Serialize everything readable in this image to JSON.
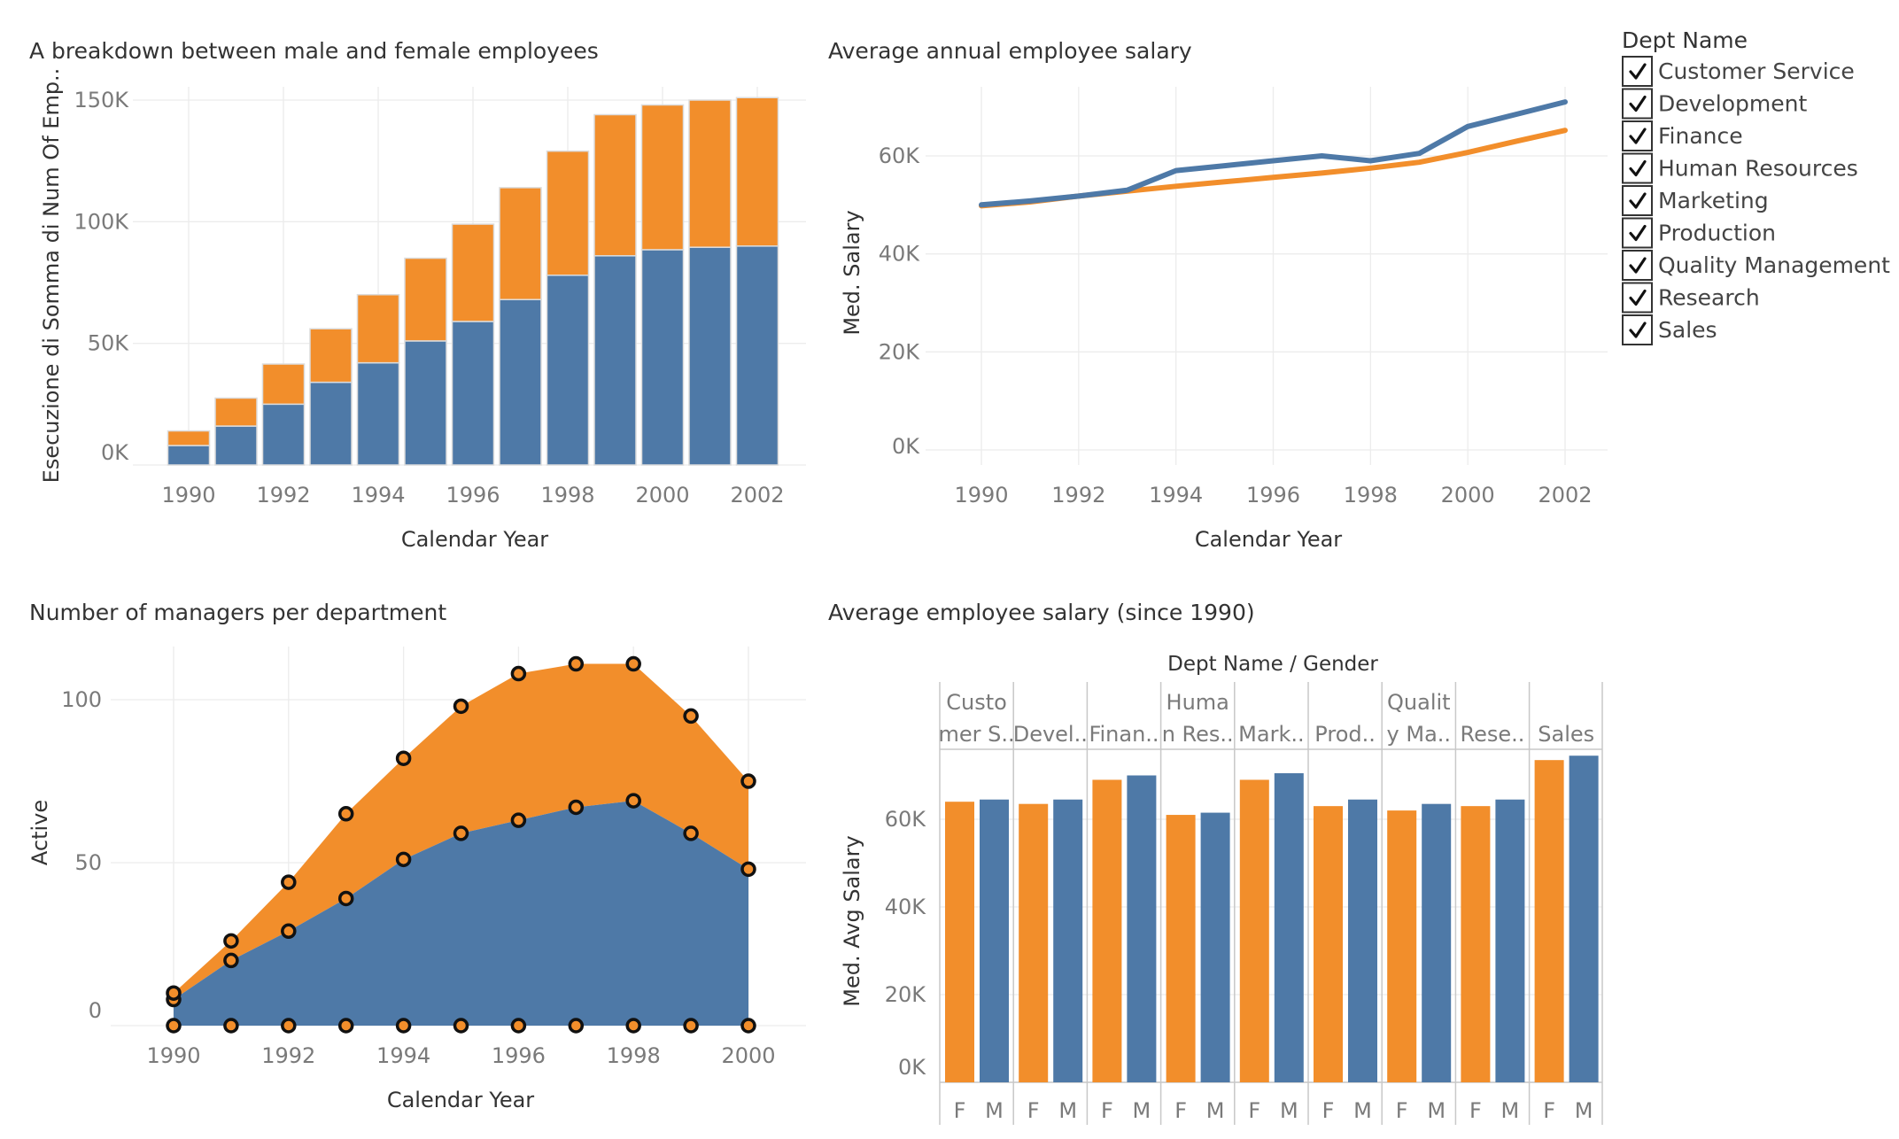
{
  "colors": {
    "female": "#f28e2b",
    "male": "#4e79a7",
    "marker_stroke": "#111111"
  },
  "legend": {
    "title": "Dept Name",
    "items": [
      "Customer Service",
      "Development",
      "Finance",
      "Human Resources",
      "Marketing",
      "Production",
      "Quality Management",
      "Research",
      "Sales"
    ],
    "checked": [
      true,
      true,
      true,
      true,
      true,
      true,
      true,
      true,
      true
    ]
  },
  "chart_data": [
    {
      "id": "gender_breakdown",
      "type": "bar",
      "stacked": true,
      "title": "A breakdown between male and female employees",
      "xlabel": "Calendar Year",
      "ylabel": "Esecuzione di Somma di Num Of Emp..",
      "ylim": [
        0,
        150000
      ],
      "y_ticks": [
        "0K",
        "50K",
        "100K",
        "150K"
      ],
      "x_ticks": [
        "1990",
        "1992",
        "1994",
        "1996",
        "1998",
        "2000",
        "2002"
      ],
      "categories": [
        "1990",
        "1991",
        "1992",
        "1993",
        "1994",
        "1995",
        "1996",
        "1997",
        "1998",
        "1999",
        "2000",
        "2001",
        "2002"
      ],
      "series": [
        {
          "values": [
            8000,
            16000,
            25000,
            34000,
            42000,
            51000,
            59000,
            68000,
            78000,
            86000,
            88500,
            89500,
            90000
          ]
        },
        {
          "values": [
            6000,
            11500,
            16500,
            22000,
            28000,
            34000,
            40000,
            46000,
            51000,
            58000,
            59500,
            60500,
            61000
          ]
        }
      ]
    },
    {
      "id": "avg_salary_line",
      "type": "line",
      "title": "Average annual employee salary",
      "xlabel": "Calendar Year",
      "ylabel": "Med. Salary",
      "ylim": [
        0,
        75000
      ],
      "y_ticks": [
        "0K",
        "20K",
        "40K",
        "60K"
      ],
      "x_ticks": [
        "1990",
        "1992",
        "1994",
        "1996",
        "1998",
        "2000",
        "2002"
      ],
      "x": [
        1990,
        1991,
        1992,
        1993,
        1994,
        1995,
        1996,
        1997,
        1998,
        1999,
        2000,
        2001,
        2002
      ],
      "series": [
        {
          "values": [
            50000,
            50800,
            51800,
            53000,
            57000,
            58000,
            59000,
            60000,
            59000,
            60500,
            66000,
            68500,
            71000
          ]
        },
        {
          "values": [
            49800,
            50600,
            51800,
            52800,
            53800,
            54700,
            55600,
            56500,
            57500,
            58700,
            60700,
            63000,
            65200
          ]
        }
      ]
    },
    {
      "id": "managers_area",
      "type": "area",
      "stacked": true,
      "title": "Number of managers per department",
      "xlabel": "Calendar Year",
      "ylabel": "Active",
      "ylim": [
        0,
        115
      ],
      "y_ticks": [
        "0",
        "50",
        "100"
      ],
      "x_ticks": [
        "1990",
        "1992",
        "1994",
        "1996",
        "1998",
        "2000"
      ],
      "x": [
        1990,
        1991,
        1992,
        1993,
        1994,
        1995,
        1996,
        1997,
        1998,
        1999,
        2000
      ],
      "series": [
        {
          "values": [
            8,
            20,
            29,
            39,
            51,
            59,
            63,
            67,
            69,
            59,
            48
          ]
        },
        {
          "values": [
            2,
            6,
            15,
            26,
            31,
            39,
            45,
            44,
            42,
            36,
            27
          ]
        }
      ]
    },
    {
      "id": "dept_salary_bar",
      "type": "bar",
      "title": "Average employee salary (since 1990)",
      "header": "Dept Name  /  Gender",
      "ylabel": "Med. Avg Salary",
      "ylim": [
        0,
        80000
      ],
      "y_ticks": [
        "0K",
        "20K",
        "40K",
        "60K"
      ],
      "departments": [
        {
          "label_lines": [
            "Custo",
            "mer S.."
          ],
          "female": 64000,
          "male": 64500
        },
        {
          "label_lines": [
            "Devel.."
          ],
          "female": 63500,
          "male": 64500
        },
        {
          "label_lines": [
            "Finan.."
          ],
          "female": 69000,
          "male": 70000
        },
        {
          "label_lines": [
            "Huma",
            "n Res.."
          ],
          "female": 61000,
          "male": 61500
        },
        {
          "label_lines": [
            "Mark.."
          ],
          "female": 69000,
          "male": 70500
        },
        {
          "label_lines": [
            "Prod.."
          ],
          "female": 63000,
          "male": 64500
        },
        {
          "label_lines": [
            "Qualit",
            "y Ma.."
          ],
          "female": 62000,
          "male": 63500
        },
        {
          "label_lines": [
            "Rese.."
          ],
          "female": 63000,
          "male": 64500
        },
        {
          "label_lines": [
            "Sales"
          ],
          "female": 73500,
          "male": 74500
        }
      ],
      "gender_labels": [
        "F",
        "M"
      ]
    }
  ]
}
